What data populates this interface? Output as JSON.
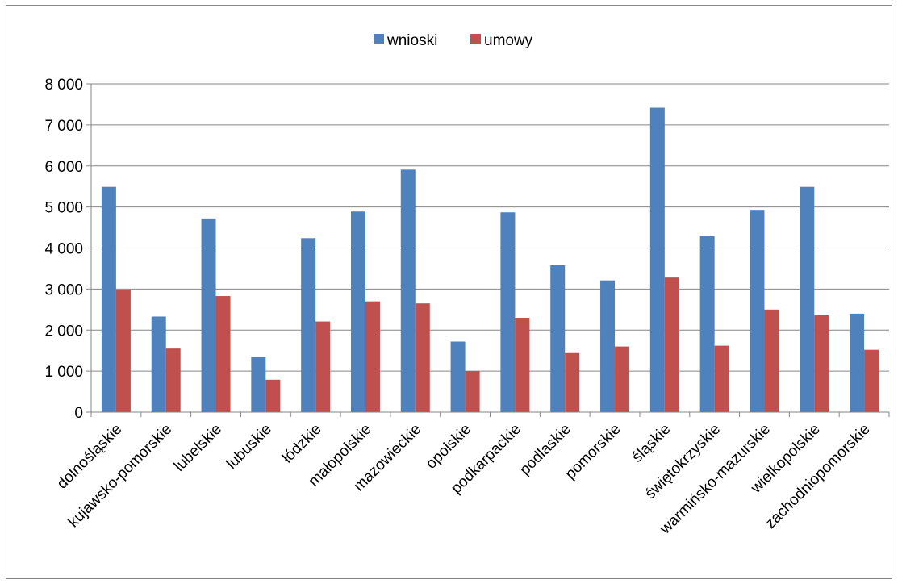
{
  "chart_data": {
    "type": "bar",
    "categories": [
      "dolnośląskie",
      "kujawsko-pomorskie",
      "lubelskie",
      "lubuskie",
      "łódzkie",
      "małopolskie",
      "mazowieckie",
      "opolskie",
      "podkarpackie",
      "podlaskie",
      "pomorskie",
      "śląskie",
      "świętokrzyskie",
      "warmińsko-mazurskie",
      "wielkopolskie",
      "zachodniopomorskie"
    ],
    "series": [
      {
        "name": "wnioski",
        "color": "#4F81BD",
        "values": [
          5490,
          2330,
          4720,
          1350,
          4240,
          4890,
          5910,
          1720,
          4870,
          3580,
          3210,
          7420,
          4290,
          4930,
          5490,
          2400
        ]
      },
      {
        "name": "umowy",
        "color": "#C0504D",
        "values": [
          2980,
          1550,
          2830,
          790,
          2210,
          2700,
          2650,
          1000,
          2300,
          1440,
          1600,
          3280,
          1620,
          2500,
          2360,
          1520
        ]
      }
    ],
    "y_ticks": [
      "0",
      "1 000",
      "2 000",
      "3 000",
      "4 000",
      "5 000",
      "6 000",
      "7 000",
      "8 000"
    ],
    "ylim": [
      0,
      8000
    ],
    "grid": true,
    "legend_position": "top"
  }
}
